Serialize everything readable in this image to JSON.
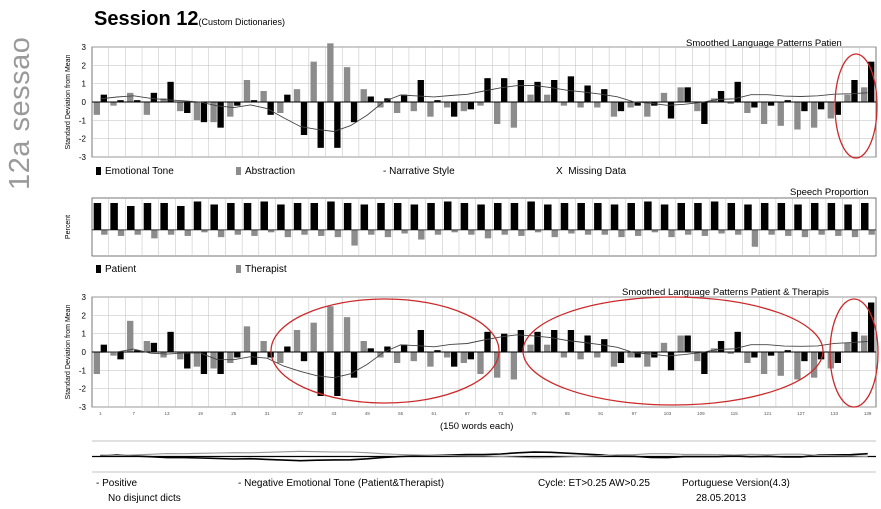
{
  "side_label": "12a sessao",
  "title": "Session 12",
  "subtitle": "(Custom Dictionaries)",
  "panels": {
    "top": {
      "title": "Smoothed Language Patterns Patien",
      "ylabel": "Standard Deviation from Mean",
      "legend": [
        "Emotional Tone",
        "Abstraction",
        "Narrative Style",
        "Missing Data"
      ]
    },
    "middle": {
      "title": "Speech Proportion",
      "ylabel": "Percent",
      "legend": [
        "Patient",
        "Therapist"
      ]
    },
    "bottom": {
      "title": "Smoothed Language Patterns Patient & Therapis",
      "ylabel": "Standard Deviation from Mean",
      "xlabel": "(150 words each)"
    }
  },
  "footer": {
    "positive": "- Positive",
    "negative": "- Negative Emotional Tone (Patient&Therapist)",
    "no_disjunct": "No disjunct dicts",
    "cycle": "Cycle: ET>0.25 AW>0.25",
    "version": "Portuguese Version(4.3)",
    "date": "28.05.2013"
  },
  "colors": {
    "bar_dark": "#000000",
    "bar_grey": "#8c8c8c",
    "highlight": "#cc2a2a",
    "grid": "#bdbdbd",
    "side_label": "#9a9a9a"
  },
  "chart_data": [
    {
      "type": "bar",
      "title": "Smoothed Language Patterns Patien",
      "ylabel": "Standard Deviation from Mean",
      "ylim": [
        -3,
        3
      ],
      "yticks": [
        3,
        2,
        1,
        0,
        -1,
        -2,
        -3
      ],
      "series": [
        {
          "name": "Emotional Tone",
          "values": [
            0.4,
            0.1,
            0.1,
            0.5,
            1.1,
            -0.6,
            -1.1,
            -1.4,
            -0.2,
            0.1,
            -0.7,
            0.4,
            -1.8,
            -2.5,
            -2.5,
            -1.1,
            0.3,
            0.2,
            0.4,
            1.2,
            0.1,
            -0.8,
            -0.4,
            1.3,
            1.3,
            1.2,
            1.1,
            1.2,
            1.4,
            0.9,
            0.7,
            -0.5,
            -0.2,
            -0.2,
            -0.9,
            0.8,
            -1.2,
            0.6,
            1.1,
            -0.3,
            -0.2,
            0.1,
            -0.5,
            -0.4,
            -0.7,
            1.2,
            2.2
          ]
        },
        {
          "name": "Abstraction",
          "values": [
            -0.7,
            -0.2,
            0.5,
            -0.7,
            0.2,
            -0.5,
            -1.0,
            -1.1,
            -0.8,
            1.2,
            0.6,
            -0.6,
            0.7,
            2.2,
            3.2,
            1.9,
            0.7,
            -0.3,
            -0.6,
            -0.5,
            -0.8,
            -0.3,
            -0.5,
            -0.2,
            -1.2,
            -1.4,
            0.4,
            0.4,
            -0.2,
            -0.3,
            -0.3,
            -0.8,
            -0.3,
            -0.8,
            0.5,
            0.8,
            -0.5,
            0.2,
            -0.1,
            -0.6,
            -1.2,
            -1.3,
            -1.5,
            -1.4,
            -0.9,
            0.4,
            0.8
          ]
        }
      ],
      "annotation": "red ellipse highlighting final segments"
    },
    {
      "type": "bar",
      "title": "Speech Proportion",
      "ylabel": "Percent",
      "series": [
        {
          "name": "Patient",
          "values": [
            0.9,
            0.9,
            0.8,
            0.9,
            0.9,
            0.8,
            0.95,
            0.85,
            0.9,
            0.9,
            0.95,
            0.85,
            0.9,
            0.9,
            0.95,
            0.9,
            0.85,
            0.9,
            0.9,
            0.85,
            0.9,
            0.95,
            0.9,
            0.85,
            0.9,
            0.9,
            0.95,
            0.85,
            0.9,
            0.9,
            0.9,
            0.85,
            0.9,
            0.95,
            0.85,
            0.9,
            0.9,
            0.95,
            0.9,
            0.85,
            0.9,
            0.9,
            0.85,
            0.9,
            0.9,
            0.85,
            0.9
          ]
        },
        {
          "name": "Therapist",
          "values": [
            0.2,
            0.25,
            0.2,
            0.35,
            0.2,
            0.25,
            0.1,
            0.3,
            0.2,
            0.25,
            0.1,
            0.3,
            0.2,
            0.25,
            0.3,
            0.65,
            0.2,
            0.3,
            0.15,
            0.4,
            0.2,
            0.1,
            0.2,
            0.35,
            0.2,
            0.25,
            0.1,
            0.3,
            0.15,
            0.2,
            0.2,
            0.3,
            0.25,
            0.1,
            0.3,
            0.2,
            0.25,
            0.15,
            0.2,
            0.7,
            0.2,
            0.25,
            0.3,
            0.2,
            0.25,
            0.3,
            0.2
          ]
        }
      ]
    },
    {
      "type": "bar",
      "title": "Smoothed Language Patterns Patient & Therapis",
      "ylabel": "Standard Deviation from Mean",
      "xlabel": "(150 words each)",
      "ylim": [
        -3,
        3
      ],
      "yticks": [
        3,
        2,
        1,
        0,
        -1,
        -2,
        -3
      ],
      "series": [
        {
          "name": "Emotional Tone",
          "values": [
            0.4,
            -0.4,
            0.1,
            0.5,
            1.1,
            -0.9,
            -1.2,
            -1.2,
            -0.3,
            -0.7,
            -0.3,
            0.3,
            -0.5,
            -2.4,
            -2.4,
            -1.4,
            0.2,
            0.3,
            0.4,
            1.2,
            0.1,
            -0.8,
            -0.4,
            1.1,
            1.0,
            1.2,
            1.1,
            1.2,
            1.2,
            0.9,
            0.7,
            -0.6,
            -0.3,
            -0.3,
            -1.0,
            0.9,
            -1.2,
            0.6,
            1.1,
            -0.3,
            -0.2,
            0.1,
            -0.5,
            -0.4,
            -0.6,
            1.1,
            2.7
          ]
        },
        {
          "name": "Abstraction",
          "values": [
            -1.2,
            -0.2,
            1.7,
            0.6,
            -0.3,
            -0.4,
            -0.8,
            -0.9,
            -0.6,
            1.4,
            0.6,
            -0.6,
            1.2,
            1.6,
            2.5,
            1.9,
            0.6,
            -0.3,
            -0.6,
            -0.5,
            -0.8,
            -0.3,
            -0.6,
            -1.2,
            -1.4,
            -1.5,
            0.4,
            0.4,
            -0.3,
            -0.4,
            -0.3,
            -0.8,
            -0.3,
            -0.8,
            0.5,
            0.9,
            -0.5,
            0.2,
            -0.1,
            -0.6,
            -1.2,
            -1.3,
            -1.5,
            -1.4,
            -0.9,
            0.5,
            0.9
          ]
        }
      ],
      "annotation": "red ellipses highlighting three regions"
    }
  ]
}
